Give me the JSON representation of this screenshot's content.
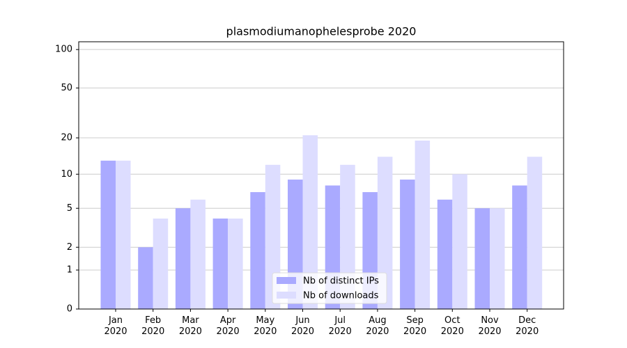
{
  "chart_data": {
    "type": "bar",
    "title": "plasmodiumanophelesprobe 2020",
    "categories": [
      "Jan\n2020",
      "Feb\n2020",
      "Mar\n2020",
      "Apr\n2020",
      "May\n2020",
      "Jun\n2020",
      "Jul\n2020",
      "Aug\n2020",
      "Sep\n2020",
      "Oct\n2020",
      "Nov\n2020",
      "Dec\n2020"
    ],
    "series": [
      {
        "name": "Nb of distinct IPs",
        "color": "#aaaaff",
        "values": [
          13,
          2,
          5,
          4,
          7,
          9,
          8,
          7,
          9,
          6,
          5,
          8
        ]
      },
      {
        "name": "Nb of downloads",
        "color": "#ddddff",
        "values": [
          13,
          4,
          6,
          4,
          12,
          21,
          12,
          14,
          19,
          10,
          5,
          14
        ]
      }
    ],
    "yscale": "log1p",
    "ylim": [
      0,
      115
    ],
    "yticks": [
      0,
      1,
      2,
      5,
      10,
      20,
      50,
      100
    ],
    "grid": true,
    "legend": "lower center"
  }
}
